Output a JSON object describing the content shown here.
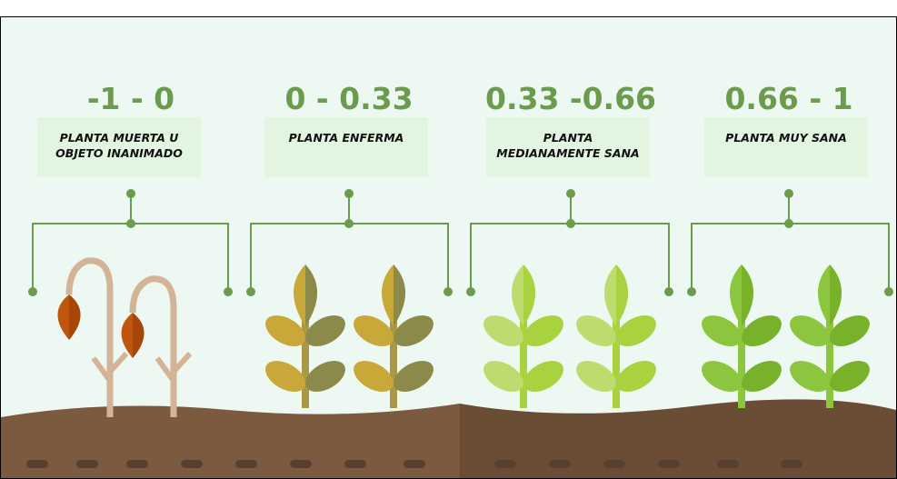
{
  "ranges": [
    {
      "range": "-1 - 0",
      "label": "PLANTA MUERTA U OBJETO INANIMADO"
    },
    {
      "range": "0 - 0.33",
      "label": "PLANTA ENFERMA"
    },
    {
      "range": "0.33 -0.66",
      "label": "PLANTA MEDIANAMENTE SANA"
    },
    {
      "range": "0.66 - 1",
      "label": "PLANTA MUY SANA"
    }
  ]
}
